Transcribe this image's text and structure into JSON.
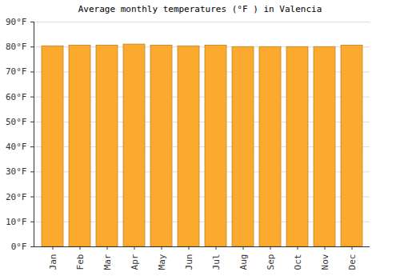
{
  "chart_data": {
    "type": "bar",
    "title": "Average monthly temperatures (°F ) in Valencia",
    "categories": [
      "Jan",
      "Feb",
      "Mar",
      "Apr",
      "May",
      "Jun",
      "Jul",
      "Aug",
      "Sep",
      "Oct",
      "Nov",
      "Dec"
    ],
    "values": [
      80.3,
      80.6,
      80.6,
      81,
      80.6,
      80.3,
      80.6,
      80,
      80,
      80,
      80,
      80.6
    ],
    "color": "#fbaa2e",
    "ylim": [
      0,
      90
    ],
    "yticks": [
      {
        "value": 0,
        "label": "0°F"
      },
      {
        "value": 10,
        "label": "10°F"
      },
      {
        "value": 20,
        "label": "20°F"
      },
      {
        "value": 30,
        "label": "30°F"
      },
      {
        "value": 40,
        "label": "40°F"
      },
      {
        "value": 50,
        "label": "50°F"
      },
      {
        "value": 60,
        "label": "60°F"
      },
      {
        "value": 70,
        "label": "70°F"
      },
      {
        "value": 80,
        "label": "80°F"
      },
      {
        "value": 90,
        "label": "90°F"
      }
    ],
    "grid": true
  }
}
